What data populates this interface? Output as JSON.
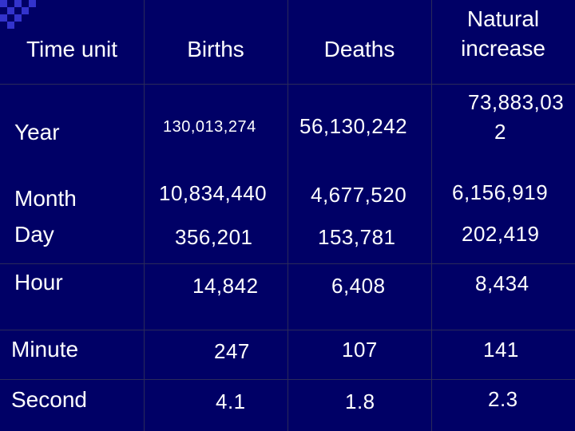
{
  "colors": {
    "background": "#000066",
    "text": "#ffffff",
    "grid": "#2a2a5a",
    "accent": "#3333cc"
  },
  "headers": {
    "time_unit": "Time unit",
    "births": "Births",
    "deaths": "Deaths",
    "natural_line1": "Natural",
    "natural_line2": "increase"
  },
  "rows": [
    {
      "unit": "Year",
      "births": "130,013,274",
      "deaths": "56,130,242",
      "natural_line1": "73,883,03",
      "natural_line2": "2"
    },
    {
      "unit": "Month",
      "births": "10,834,440",
      "deaths": "4,677,520",
      "natural": "6,156,919"
    },
    {
      "unit": "Day",
      "births": "356,201",
      "deaths": "153,781",
      "natural": "202,419"
    },
    {
      "unit": "Hour",
      "births": "14,842",
      "deaths": "6,408",
      "natural": "8,434"
    },
    {
      "unit": "Minute",
      "births": "247",
      "deaths": "107",
      "natural": "141"
    },
    {
      "unit": "Second",
      "births": "4.1",
      "deaths": "1.8",
      "natural": "2.3"
    }
  ]
}
